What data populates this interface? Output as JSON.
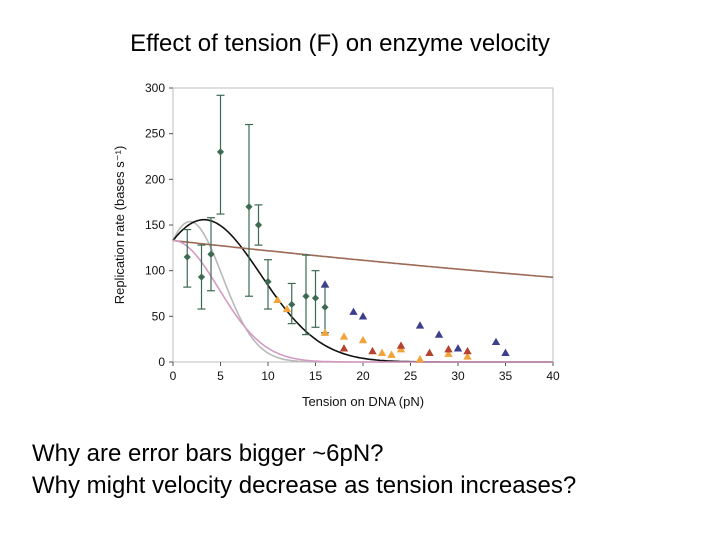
{
  "slide": {
    "title": "Effect of tension (F) on enzyme velocity",
    "questions": [
      "Why are error bars bigger ~6pN?",
      "Why might velocity decrease as tension increases?"
    ]
  },
  "chart_data": {
    "type": "scatter",
    "xlabel": "Tension on DNA (pN)",
    "ylabel": "Replication rate (bases s⁻¹)",
    "xlim": [
      0,
      40
    ],
    "ylim": [
      0,
      300
    ],
    "xticks": [
      0,
      5,
      10,
      15,
      20,
      25,
      30,
      35,
      40
    ],
    "yticks": [
      0,
      50,
      100,
      150,
      200,
      250,
      300
    ],
    "series": [
      {
        "name": "green diamonds (with error bars)",
        "marker": "diamond",
        "color": "#3d6b52",
        "points": [
          {
            "x": 1.5,
            "y": 115,
            "lo": 82,
            "hi": 145
          },
          {
            "x": 3,
            "y": 93,
            "lo": 58,
            "hi": 128
          },
          {
            "x": 4,
            "y": 118,
            "lo": 78,
            "hi": 158
          },
          {
            "x": 5,
            "y": 230,
            "lo": 162,
            "hi": 292
          },
          {
            "x": 8,
            "y": 170,
            "lo": 72,
            "hi": 260
          },
          {
            "x": 9,
            "y": 150,
            "lo": 128,
            "hi": 172
          },
          {
            "x": 10,
            "y": 88,
            "lo": 58,
            "hi": 112
          },
          {
            "x": 12.5,
            "y": 63,
            "lo": 42,
            "hi": 86
          },
          {
            "x": 14,
            "y": 72,
            "lo": 30,
            "hi": 117
          },
          {
            "x": 15,
            "y": 70,
            "lo": 38,
            "hi": 100
          },
          {
            "x": 16,
            "y": 60,
            "lo": 32,
            "hi": 82
          }
        ]
      },
      {
        "name": "blue triangles",
        "marker": "triangle",
        "color": "#3e3f8c",
        "points": [
          {
            "x": 16,
            "y": 85
          },
          {
            "x": 19,
            "y": 55
          },
          {
            "x": 20,
            "y": 50
          },
          {
            "x": 26,
            "y": 40
          },
          {
            "x": 28,
            "y": 30
          },
          {
            "x": 30,
            "y": 15
          },
          {
            "x": 34,
            "y": 22
          },
          {
            "x": 35,
            "y": 10
          }
        ]
      },
      {
        "name": "orange triangles",
        "marker": "triangle",
        "color": "#f2a33a",
        "points": [
          {
            "x": 11,
            "y": 68
          },
          {
            "x": 12,
            "y": 58
          },
          {
            "x": 16,
            "y": 32
          },
          {
            "x": 18,
            "y": 28
          },
          {
            "x": 20,
            "y": 24
          },
          {
            "x": 22,
            "y": 10
          },
          {
            "x": 23,
            "y": 8
          },
          {
            "x": 24,
            "y": 14
          },
          {
            "x": 26,
            "y": 3
          },
          {
            "x": 29,
            "y": 9
          },
          {
            "x": 31,
            "y": 6
          }
        ]
      },
      {
        "name": "red triangles",
        "marker": "triangle",
        "color": "#b5432f",
        "points": [
          {
            "x": 18,
            "y": 15
          },
          {
            "x": 21,
            "y": 12
          },
          {
            "x": 24,
            "y": 18
          },
          {
            "x": 27,
            "y": 10
          },
          {
            "x": 29,
            "y": 14
          },
          {
            "x": 31,
            "y": 12
          }
        ]
      }
    ],
    "curves": [
      {
        "name": "grey fit",
        "color": "#b9b9b9",
        "model": "gamma",
        "params": {
          "A": 133,
          "B": 53,
          "T": 4.8,
          "k": 2
        }
      },
      {
        "name": "black fit",
        "color": "#111111",
        "model": "gamma",
        "params": {
          "A": 133,
          "B": 35,
          "T": 5.3,
          "k": 1.25
        }
      },
      {
        "name": "brown fit",
        "color": "#9b6a55",
        "model": "gamma",
        "params": {
          "A": 133,
          "B": 2,
          "T": 7.5,
          "k": 0.21
        }
      },
      {
        "name": "pink fit",
        "color": "#d49ac4",
        "model": "gaussian",
        "params": {
          "A": 133,
          "s": 4.8
        }
      }
    ]
  }
}
